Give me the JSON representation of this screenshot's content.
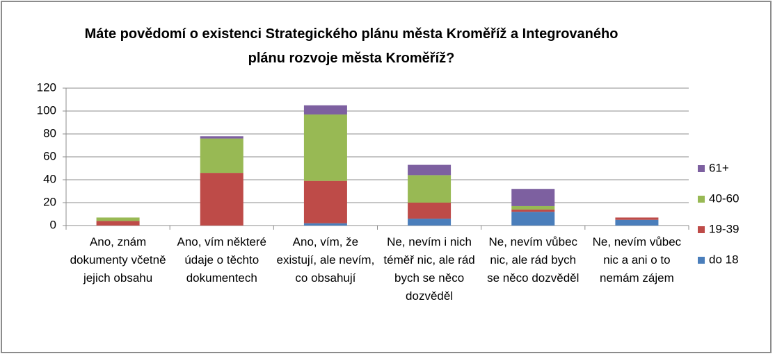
{
  "chart_data": {
    "type": "bar",
    "stacked": true,
    "title": "Máte povědomí o existenci Strategického plánu města Kroměříž a Integrovaného plánu rozvoje města Kroměříž?",
    "categories": [
      "Ano, znám dokumenty včetně jejich obsahu",
      "Ano, vím některé údaje o těchto dokumentech",
      "Ano, vím, že existují, ale nevím, co obsahují",
      "Ne, nevím i nich téměř nic, ale rád bych se něco dozvěděl",
      "Ne, nevím vůbec nic, ale rád bych se něco dozvěděl",
      "Ne, nevím vůbec nic a ani o to nemám zájem"
    ],
    "series": [
      {
        "name": "do 18",
        "color": "#4a7ebb",
        "values": [
          0,
          0,
          2,
          6,
          12,
          5
        ]
      },
      {
        "name": "19-39",
        "color": "#be4b48",
        "values": [
          4,
          46,
          37,
          14,
          2,
          2
        ]
      },
      {
        "name": "40-60",
        "color": "#98b954",
        "values": [
          3,
          30,
          58,
          24,
          3,
          0
        ]
      },
      {
        "name": "61+",
        "color": "#7d60a0",
        "values": [
          0,
          2,
          8,
          9,
          15,
          0
        ]
      }
    ],
    "ylim": [
      0,
      120
    ],
    "yticks": [
      0,
      20,
      40,
      60,
      80,
      100,
      120
    ],
    "grid": true,
    "legend": "right"
  }
}
